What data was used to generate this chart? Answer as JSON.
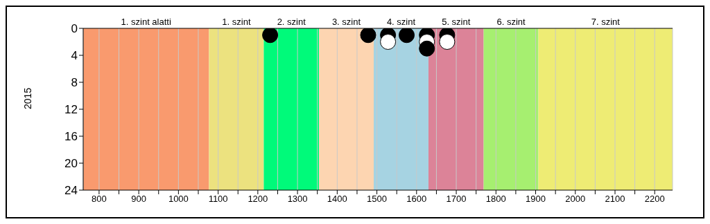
{
  "chart_data": {
    "type": "scatter",
    "ylabel": "2015",
    "xlim": [
      760,
      2245
    ],
    "ylim": [
      24,
      0
    ],
    "xticks": [
      800,
      {
        "value": 850,
        "label": null
      },
      900,
      {
        "value": 950,
        "label": null
      },
      1000,
      {
        "value": 1050,
        "label": null
      },
      1100,
      {
        "value": 1150,
        "label": null
      },
      1200,
      {
        "value": 1250,
        "label": null
      },
      1300,
      {
        "value": 1350,
        "label": null
      },
      1400,
      {
        "value": 1450,
        "label": null
      },
      1500,
      {
        "value": 1550,
        "label": null
      },
      1600,
      {
        "value": 1650,
        "label": null
      },
      1700,
      {
        "value": 1750,
        "label": null
      },
      1800,
      {
        "value": 1850,
        "label": null
      },
      1900,
      {
        "value": 1950,
        "label": null
      },
      2000,
      {
        "value": 2050,
        "label": null
      },
      2100,
      {
        "value": 2150,
        "label": null
      },
      2200
    ],
    "yticks": [
      0,
      4,
      8,
      12,
      16,
      20,
      24
    ],
    "grid": "x",
    "marker": "circle",
    "legend": false,
    "bands": [
      {
        "axis": "x",
        "from": 760,
        "to": 1077,
        "label": "1. szint alatti",
        "color": "#f99a6e"
      },
      {
        "axis": "x",
        "from": 1077,
        "to": 1215,
        "label": "1. szint",
        "color": "#ece27f"
      },
      {
        "axis": "x",
        "from": 1215,
        "to": 1354,
        "label": "2. szint",
        "color": "#00fa7a"
      },
      {
        "axis": "x",
        "from": 1354,
        "to": 1492,
        "label": "3. szint",
        "color": "#fdd5b1"
      },
      {
        "axis": "x",
        "from": 1492,
        "to": 1630,
        "label": "4. szint",
        "color": "#a6d3e2"
      },
      {
        "axis": "x",
        "from": 1630,
        "to": 1769,
        "label": "5. szint",
        "color": "#dc8398"
      },
      {
        "axis": "x",
        "from": 1769,
        "to": 1907,
        "label": "6. szint",
        "color": "#a6ef70"
      },
      {
        "axis": "x",
        "from": 1907,
        "to": 2245,
        "label": "7. szint",
        "color": "#eeec74"
      }
    ],
    "series": [
      {
        "color": "#000000",
        "x": [
          1231,
          1478,
          1528,
          1575,
          1626,
          1677
        ],
        "values": [
          1,
          1,
          1,
          1,
          1,
          1
        ]
      },
      {
        "color": "#ffffff",
        "x": [
          1528,
          1626,
          1677
        ],
        "values": [
          2,
          2,
          2
        ]
      },
      {
        "color": "#000000",
        "x": [
          1626
        ],
        "values": [
          3
        ]
      }
    ]
  }
}
